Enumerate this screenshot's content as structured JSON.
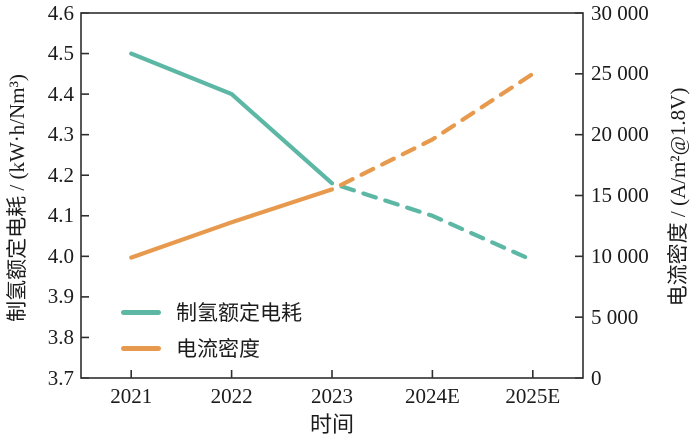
{
  "chart_data": {
    "type": "line",
    "title": "",
    "xlabel": "时间",
    "x_categories": [
      "2021",
      "2022",
      "2023",
      "2024E",
      "2025E"
    ],
    "left_axis": {
      "label": "制氢额定电耗 / (kW·h/Nm³)",
      "min": 3.7,
      "max": 4.6,
      "tick_labels": [
        "3.7",
        "3.8",
        "3.9",
        "4.0",
        "4.1",
        "4.2",
        "4.3",
        "4.4",
        "4.5",
        "4.6"
      ]
    },
    "right_axis": {
      "label": "电流密度 / (A/m²@1.8V)",
      "min": 0,
      "max": 30000,
      "tick_labels": [
        "0",
        "5 000",
        "10 000",
        "15 000",
        "20 000",
        "25 000",
        "30 000"
      ]
    },
    "series": [
      {
        "name": "制氢额定电耗",
        "axis": "left",
        "color": "#5cb7a4",
        "values": [
          4.5,
          4.4,
          4.18,
          4.1,
          3.99
        ],
        "solid_until_index": 2,
        "style_after": "dashed"
      },
      {
        "name": "电流密度",
        "axis": "right",
        "color": "#e79a4d",
        "values": [
          9900,
          12800,
          15500,
          19600,
          25000
        ],
        "solid_until_index": 2,
        "style_after": "dashed"
      }
    ],
    "legend_position": "lower-left",
    "grid": false,
    "frame_color": "#2f2f2f"
  }
}
